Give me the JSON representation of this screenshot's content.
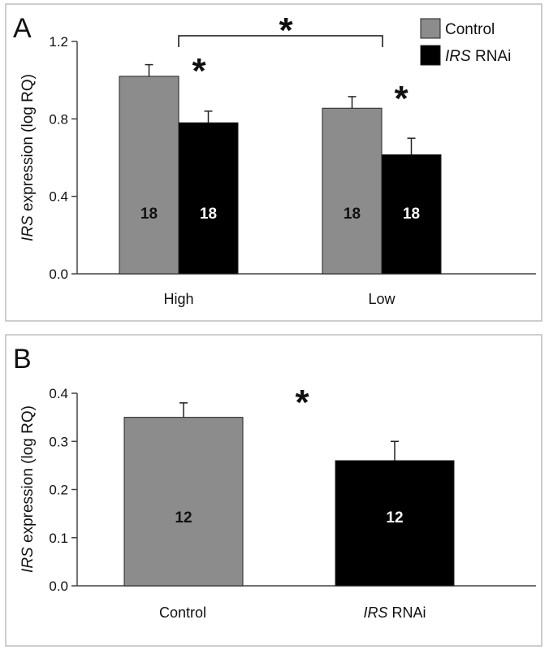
{
  "chart_data": [
    {
      "type": "bar",
      "panel_label": "A",
      "ylabel_italic": "IRS",
      "ylabel_rest": " expression (log RQ)",
      "categories": [
        "High",
        "Low"
      ],
      "yticks": [
        "0.0",
        "0.4",
        "0.8",
        "1.2"
      ],
      "ylim": [
        0,
        1.2
      ],
      "series": [
        {
          "name": "Control",
          "values": [
            1.02,
            0.855
          ],
          "errors": [
            0.06,
            0.06
          ],
          "n": [
            "18",
            "18"
          ],
          "color": "#8c8c8c",
          "label_color": "#111111"
        },
        {
          "name_italic": "IRS",
          "name_rest": " RNAi",
          "values": [
            0.78,
            0.615
          ],
          "errors": [
            0.06,
            0.085
          ],
          "n": [
            "18",
            "18"
          ],
          "color": "#000000",
          "label_color": "#ffffff"
        }
      ],
      "legend": "top-right",
      "annotations": [
        "*",
        "*",
        "*"
      ],
      "grid": false
    },
    {
      "type": "bar",
      "panel_label": "B",
      "ylabel_italic": "IRS",
      "ylabel_rest": " expression (log RQ)",
      "categories": [
        {
          "italic": "",
          "rest": "Control"
        },
        {
          "italic": "IRS",
          "rest": " RNAi"
        }
      ],
      "yticks": [
        "0.0",
        "0.1",
        "0.2",
        "0.3",
        "0.4"
      ],
      "ylim": [
        0,
        0.4
      ],
      "values": [
        0.35,
        0.26
      ],
      "errors": [
        0.03,
        0.04
      ],
      "n": [
        "12",
        "12"
      ],
      "colors": [
        "#8c8c8c",
        "#000000"
      ],
      "label_colors": [
        "#111111",
        "#ffffff"
      ],
      "annotations": [
        "*"
      ],
      "grid": false
    }
  ]
}
